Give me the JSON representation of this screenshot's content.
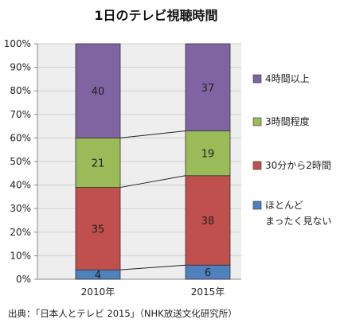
{
  "chart_data": {
    "type": "bar",
    "stacked": true,
    "normalized_percent": true,
    "title": "1日のテレビ視聴時間",
    "categories": [
      "2010年",
      "2015年"
    ],
    "series": [
      {
        "name": "ほとんどまったく見ない",
        "legend_lines": [
          "ほとんど",
          "まったく見ない"
        ],
        "values": [
          4,
          6
        ],
        "color": "#4f81bd"
      },
      {
        "name": "30分から2時間",
        "legend_lines": [
          "30分から2時間"
        ],
        "values": [
          35,
          38
        ],
        "color": "#c0504d"
      },
      {
        "name": "3時間程度",
        "legend_lines": [
          "3時間程度"
        ],
        "values": [
          21,
          19
        ],
        "color": "#9bbb59"
      },
      {
        "name": "4時間以上",
        "legend_lines": [
          "4時間以上"
        ],
        "values": [
          40,
          37
        ],
        "color": "#8064a2"
      }
    ],
    "ylim": [
      0,
      100
    ],
    "yticks": [
      "0%",
      "10%",
      "20%",
      "30%",
      "40%",
      "50%",
      "60%",
      "70%",
      "80%",
      "90%",
      "100%"
    ],
    "grid": true,
    "series_connector_lines": true,
    "legend_position": "right",
    "plot_background": "#eeeeee",
    "source": "出典：｢日本人とテレビ 2015｣（NHK放送文化研究所）"
  }
}
